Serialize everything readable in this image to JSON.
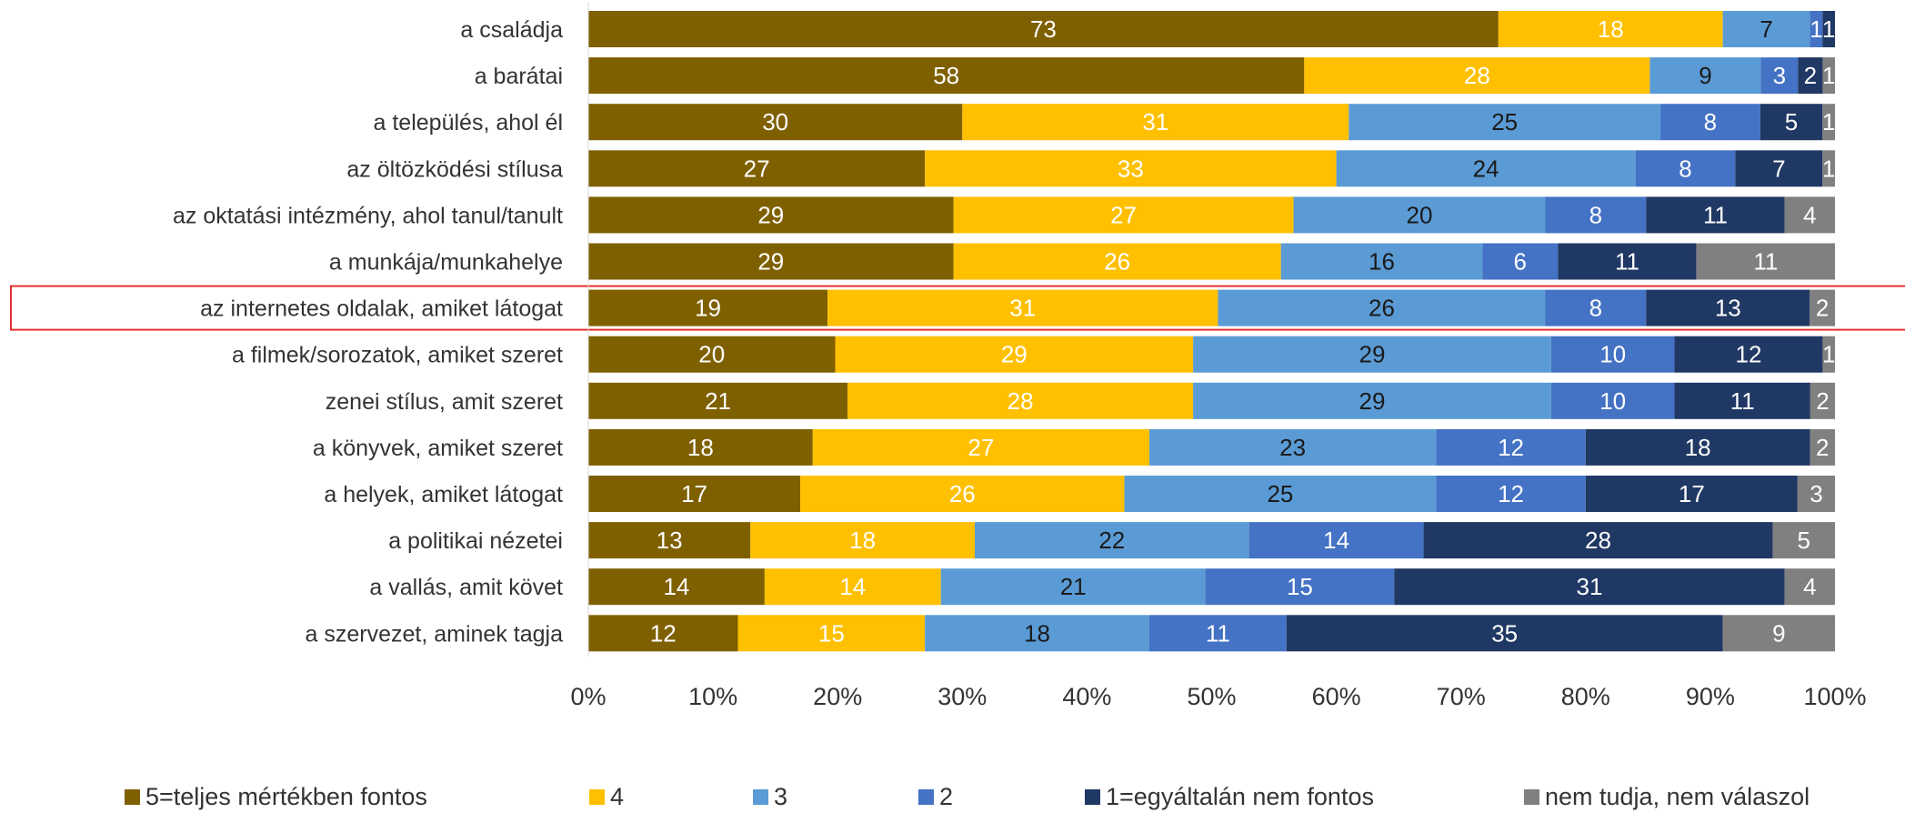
{
  "chart_data": {
    "type": "bar",
    "orientation": "horizontal",
    "stacked": true,
    "percent": true,
    "categories": [
      "a családja",
      "a barátai",
      "a település, ahol él",
      "az öltözködési stílusa",
      "az oktatási intézmény, ahol tanul/tanult",
      "a munkája/munkahelye",
      "az internetes oldalak, amiket látogat",
      "a filmek/sorozatok, amiket szeret",
      "zenei stílus, amit szeret",
      "a könyvek, amiket szeret",
      "a helyek, amiket látogat",
      "a politikai nézetei",
      "a vallás, amit követ",
      "a szervezet, aminek tagja"
    ],
    "series": [
      {
        "name": "5=teljes mértékben fontos",
        "color": "#7f6000",
        "label_color": "#ffffff",
        "values": [
          73,
          58,
          30,
          27,
          29,
          29,
          19,
          20,
          21,
          18,
          17,
          13,
          14,
          12
        ]
      },
      {
        "name": "4",
        "color": "#ffc000",
        "label_color": "#ffffff",
        "values": [
          18,
          28,
          31,
          33,
          27,
          26,
          31,
          29,
          28,
          27,
          26,
          18,
          14,
          15
        ]
      },
      {
        "name": "3",
        "color": "#5b9bd5",
        "label_color": "#1a1a1a",
        "values": [
          7,
          9,
          25,
          24,
          20,
          16,
          26,
          29,
          29,
          23,
          25,
          22,
          21,
          18
        ]
      },
      {
        "name": "2",
        "color": "#4472c4",
        "label_color": "#ffffff",
        "values": [
          1,
          3,
          8,
          8,
          8,
          6,
          8,
          10,
          10,
          12,
          12,
          14,
          15,
          11
        ]
      },
      {
        "name": "1=egyáltalán nem fontos",
        "color": "#203864",
        "label_color": "#ffffff",
        "values": [
          1,
          2,
          5,
          7,
          11,
          11,
          13,
          12,
          11,
          18,
          17,
          28,
          31,
          35
        ]
      },
      {
        "name": "nem tudja, nem válaszol",
        "color": "#808080",
        "label_color": "#ffffff",
        "values": [
          0,
          1,
          1,
          1,
          4,
          11,
          2,
          1,
          2,
          2,
          3,
          5,
          4,
          9
        ]
      }
    ],
    "xlim": [
      0,
      100
    ],
    "x_ticks": [
      "0%",
      "10%",
      "20%",
      "30%",
      "40%",
      "50%",
      "60%",
      "70%",
      "80%",
      "90%",
      "100%"
    ],
    "highlighted_category": "az internetes oldalak, amiket látogat",
    "highlight_color": "#e53030",
    "legend_position": "bottom",
    "grid": false
  }
}
